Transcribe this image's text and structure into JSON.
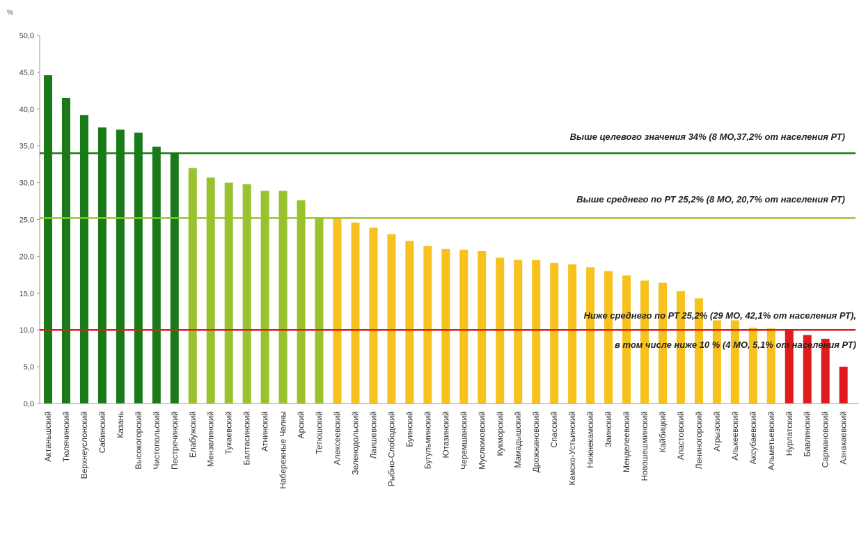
{
  "chart_data": {
    "type": "bar",
    "y_unit": "%",
    "ylim": [
      0,
      50
    ],
    "yticks": [
      "0,0",
      "5,0",
      "10,0",
      "15,0",
      "20,0",
      "25,0",
      "30,0",
      "35,0",
      "40,0",
      "45,0",
      "50,0"
    ],
    "grid": false,
    "categories": [
      "Актаньшский",
      "Тюлячинский",
      "Верхнеуслонский",
      "Сабинский",
      "Казань",
      "Высокогорский",
      "Чистопольский",
      "Пестречинский",
      "Елабужский",
      "Мензелинский",
      "Тукаевский",
      "Балтасинский",
      "Атнинский",
      "Набережные Челны",
      "Арский",
      "Тетюшский",
      "Алексеевский",
      "Зеленодольский",
      "Лаишевский",
      "Рыбно-Слободский",
      "Буинский",
      "Бугульминский",
      "Ютазинский",
      "Черемшанский",
      "Муслюмовский",
      "Кукморский",
      "Мамадышский",
      "Дрожжановский",
      "Спасский",
      "Камско-Устьинский",
      "Нижнекамский",
      "Заинский",
      "Менделеевский",
      "Новошешминский",
      "Кайбицкий",
      "Апастовский",
      "Лениногорский",
      "Агрызский",
      "Алькеевский",
      "Аксубаевский",
      "Альметьевский",
      "Нурлатский",
      "Бавлинский",
      "Сармановский",
      "Азнакаевский"
    ],
    "values": [
      44.6,
      41.5,
      39.2,
      37.5,
      37.2,
      36.8,
      34.9,
      34.1,
      32.0,
      30.7,
      30.0,
      29.8,
      28.9,
      28.9,
      27.6,
      25.2,
      25.1,
      24.6,
      23.9,
      23.0,
      22.1,
      21.4,
      21.0,
      20.9,
      20.7,
      19.8,
      19.5,
      19.5,
      19.1,
      18.9,
      18.5,
      18.0,
      17.4,
      16.7,
      16.4,
      15.3,
      14.3,
      11.3,
      11.3,
      10.3,
      10.2,
      10.0,
      9.3,
      8.8,
      5.0
    ],
    "bar_colors": [
      "#1a7a1a",
      "#1a7a1a",
      "#1a7a1a",
      "#1a7a1a",
      "#1a7a1a",
      "#1a7a1a",
      "#1a7a1a",
      "#1a7a1a",
      "#99c22e",
      "#99c22e",
      "#99c22e",
      "#99c22e",
      "#99c22e",
      "#99c22e",
      "#99c22e",
      "#99c22e",
      "#f7c11e",
      "#f7c11e",
      "#f7c11e",
      "#f7c11e",
      "#f7c11e",
      "#f7c11e",
      "#f7c11e",
      "#f7c11e",
      "#f7c11e",
      "#f7c11e",
      "#f7c11e",
      "#f7c11e",
      "#f7c11e",
      "#f7c11e",
      "#f7c11e",
      "#f7c11e",
      "#f7c11e",
      "#f7c11e",
      "#f7c11e",
      "#f7c11e",
      "#f7c11e",
      "#f7c11e",
      "#f7c11e",
      "#f7c11e",
      "#f7c11e",
      "#e01b1b",
      "#e01b1b",
      "#e01b1b",
      "#e01b1b"
    ],
    "reference_lines": [
      {
        "value": 34.0,
        "color": "#1a7a1a",
        "label": "Выше целевого значения 34% (8 МО,37,2% от населения РТ)"
      },
      {
        "value": 25.2,
        "color": "#99c22e",
        "label": "Выше среднего по РТ 25,2% (8 МО, 20,7% от населения РТ)"
      },
      {
        "value": 10.0,
        "color": "#e01b1b",
        "label": "Ниже среднего по РТ 25,2% (29 МО, 42,1% от населения РТ),"
      }
    ],
    "annotation_extra": "в том числе ниже 10 % (4 МО, 5,1% от населения РТ)"
  }
}
